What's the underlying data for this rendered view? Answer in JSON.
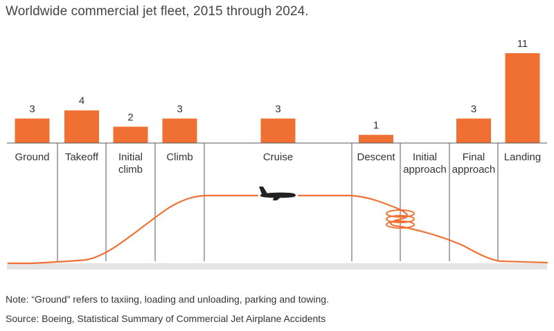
{
  "chart_data": {
    "type": "bar",
    "title": "Worldwide commercial jet fleet, 2015 through 2024.",
    "categories": [
      "Ground",
      "Takeoff",
      "Initial climb",
      "Climb",
      "Cruise",
      "Descent",
      "Initial approach",
      "Final approach",
      "Landing"
    ],
    "category_lines": [
      [
        "Ground"
      ],
      [
        "Takeoff"
      ],
      [
        "Initial",
        "climb"
      ],
      [
        "Climb"
      ],
      [
        "Cruise"
      ],
      [
        "Descent"
      ],
      [
        "Initial",
        "approach"
      ],
      [
        "Final",
        "approach"
      ],
      [
        "Landing"
      ]
    ],
    "values": [
      3,
      4,
      2,
      3,
      3,
      1,
      null,
      3,
      11
    ],
    "value_labels": [
      "3",
      "4",
      "2",
      "3",
      "3",
      "1",
      "",
      "3",
      "11"
    ],
    "xlabel": "",
    "ylabel": "",
    "ylim": [
      0,
      11
    ]
  },
  "colors": {
    "bar": "#f07033",
    "path": "#f07033",
    "divider": "#555555",
    "ground": "#e4e4e4",
    "plane": "#222222"
  },
  "icons": {
    "plane": "airplane-icon"
  },
  "footer": {
    "note": "Note: “Ground” refers to taxiing, loading and unloading, parking and towing.",
    "source": "Source: Boeing, Statistical Summary of Commercial Jet Airplane Accidents"
  }
}
